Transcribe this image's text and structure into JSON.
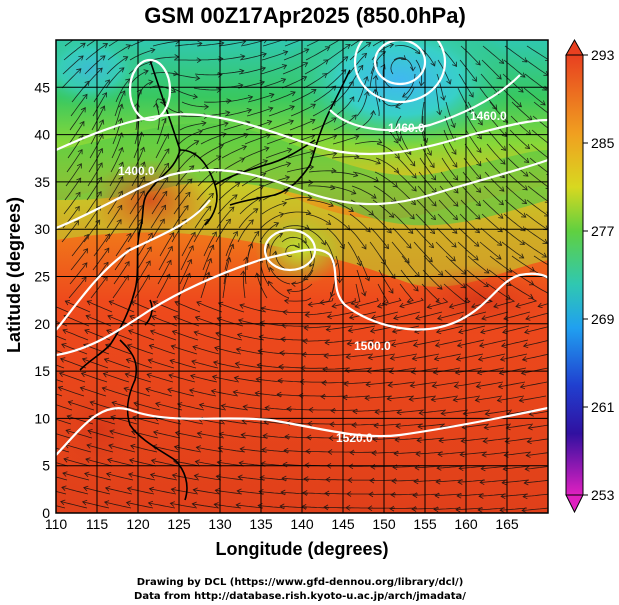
{
  "title": "GSM 00Z17Apr2025 (850.0hPa)",
  "xlabel": "Longitude (degrees)",
  "ylabel": "Latitude  (degrees)",
  "x_ticks": [
    "110",
    "115",
    "120",
    "125",
    "130",
    "135",
    "140",
    "145",
    "150",
    "155",
    "160",
    "165"
  ],
  "y_ticks": [
    "0",
    "5",
    "10",
    "15",
    "20",
    "25",
    "30",
    "35",
    "40",
    "45"
  ],
  "colorbar_ticks": [
    "293",
    "285",
    "277",
    "269",
    "261",
    "253"
  ],
  "contour_labels": [
    "1400.0",
    "1400.0",
    "1460.0",
    "1460.0",
    "1460.0",
    "1500.0",
    "1500.0",
    "1520.0",
    "1520.0"
  ],
  "credits": {
    "line1": "Drawing by DCL (https://www.gfd-dennou.org/library/dcl/)",
    "line2": "Data from http://database.rish.kyoto-u.ac.jp/arch/jmadata/"
  },
  "colors": {
    "warm": "#e8421c",
    "orange": "#f08a1a",
    "yellow_green": "#a8d830",
    "green": "#38c858",
    "cyan": "#30c8c0",
    "blue": "#2070e0",
    "navy": "#2020a0",
    "magenta": "#d020c0",
    "contour": "#ffffff"
  }
}
